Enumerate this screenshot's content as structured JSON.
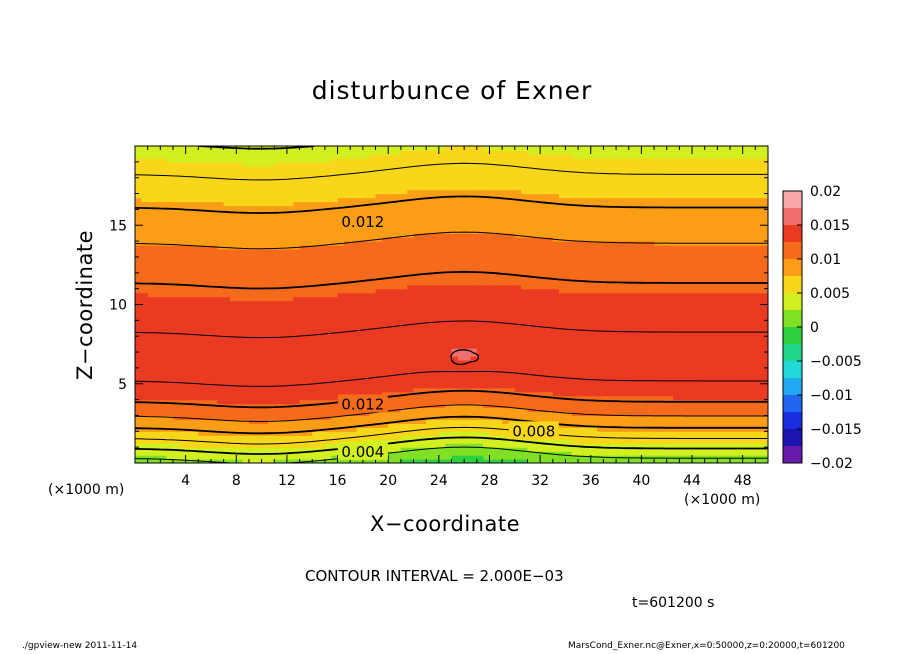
{
  "title": "disturbunce of Exner",
  "xlabel": "X−coordinate",
  "ylabel": "Z−coordinate",
  "x_unit_left": "(×1000 m)",
  "x_unit_right": "(×1000 m)",
  "contour_interval": "CONTOUR INTERVAL = 2.000E−03",
  "time_label": "t=601200 s",
  "footer_left": "./gpview-new   2011-11-14",
  "footer_right": "MarsCond_Exner.nc@Exner,x=0:50000,z=0:20000,t=601200",
  "chart_data": {
    "type": "heatmap",
    "title": "disturbunce of Exner",
    "xlabel": "X−coordinate",
    "ylabel": "Z−coordinate",
    "xlim": [
      0,
      50
    ],
    "ylim": [
      0,
      20
    ],
    "x_ticks": [
      4,
      8,
      12,
      16,
      20,
      24,
      28,
      32,
      36,
      40,
      44,
      48
    ],
    "y_ticks": [
      5,
      10,
      15
    ],
    "colorbar": {
      "range": [
        -0.02,
        0.02
      ],
      "tick_values": [
        0.02,
        0.015,
        0.01,
        0.005,
        0,
        -0.005,
        -0.01,
        -0.015,
        -0.02
      ],
      "tick_labels": [
        "0.02",
        "0.015",
        "0.01",
        "0.005",
        "0",
        "−0.005",
        "−0.01",
        "−0.015",
        "−0.02"
      ],
      "levels": [
        {
          "min": 0.0175,
          "max": 0.02,
          "color": "#f8a8a8"
        },
        {
          "min": 0.015,
          "max": 0.0175,
          "color": "#f07070"
        },
        {
          "min": 0.0125,
          "max": 0.015,
          "color": "#ea3a22"
        },
        {
          "min": 0.01,
          "max": 0.0125,
          "color": "#f66a1c"
        },
        {
          "min": 0.0075,
          "max": 0.01,
          "color": "#fb9e16"
        },
        {
          "min": 0.005,
          "max": 0.0075,
          "color": "#f8d61a"
        },
        {
          "min": 0.0025,
          "max": 0.005,
          "color": "#d2f020"
        },
        {
          "min": 0.0,
          "max": 0.0025,
          "color": "#7fe024"
        },
        {
          "min": -0.0025,
          "max": 0.0,
          "color": "#2cd040"
        },
        {
          "min": -0.005,
          "max": -0.0025,
          "color": "#20d88c"
        },
        {
          "min": -0.0075,
          "max": -0.005,
          "color": "#20d8d8"
        },
        {
          "min": -0.01,
          "max": -0.0075,
          "color": "#20a8f0"
        },
        {
          "min": -0.0125,
          "max": -0.01,
          "color": "#2066f0"
        },
        {
          "min": -0.015,
          "max": -0.0125,
          "color": "#1a2ee0"
        },
        {
          "min": -0.0175,
          "max": -0.015,
          "color": "#1a14b0"
        },
        {
          "min": -0.02,
          "max": -0.0175,
          "color": "#6a1aa8"
        }
      ]
    },
    "contour_labels": [
      {
        "text": "0.012",
        "x": 18,
        "z": 15.2
      },
      {
        "text": "0.012",
        "x": 18,
        "z": 3.7
      },
      {
        "text": "0.008",
        "x": 31.5,
        "z": 2.0
      },
      {
        "text": "0.004",
        "x": 18,
        "z": 0.7
      }
    ]
  }
}
